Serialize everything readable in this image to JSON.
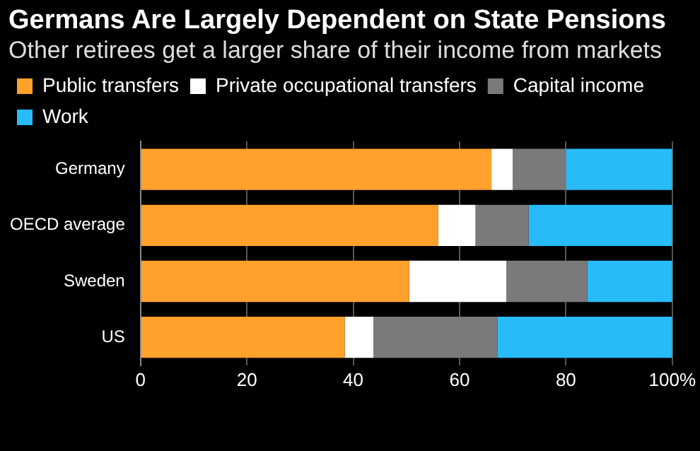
{
  "chart_data": {
    "type": "bar",
    "orientation": "horizontal",
    "stacked": true,
    "title": "Germans Are Largely Dependent on State Pensions",
    "subtitle": "Other retirees get a larger share of their income from markets",
    "categories": [
      "Germany",
      "OECD average",
      "Sweden",
      "US"
    ],
    "series": [
      {
        "name": "Public transfers",
        "color": "#ffa12b",
        "values": [
          66,
          56,
          50.5,
          38.4
        ]
      },
      {
        "name": "Private occupational transfers",
        "color": "#ffffff",
        "values": [
          4,
          7,
          18.3,
          5.4
        ]
      },
      {
        "name": "Capital income",
        "color": "#7a7a7a",
        "values": [
          10,
          10,
          15.2,
          23.3
        ]
      },
      {
        "name": "Work",
        "color": "#29bbf8",
        "values": [
          20,
          27,
          16,
          32.9
        ]
      }
    ],
    "xlim": [
      0,
      100
    ],
    "xticks": [
      0,
      20,
      40,
      60,
      80,
      {
        "value": 100,
        "label": "100%"
      }
    ],
    "grid": "x",
    "legend": "top left"
  }
}
